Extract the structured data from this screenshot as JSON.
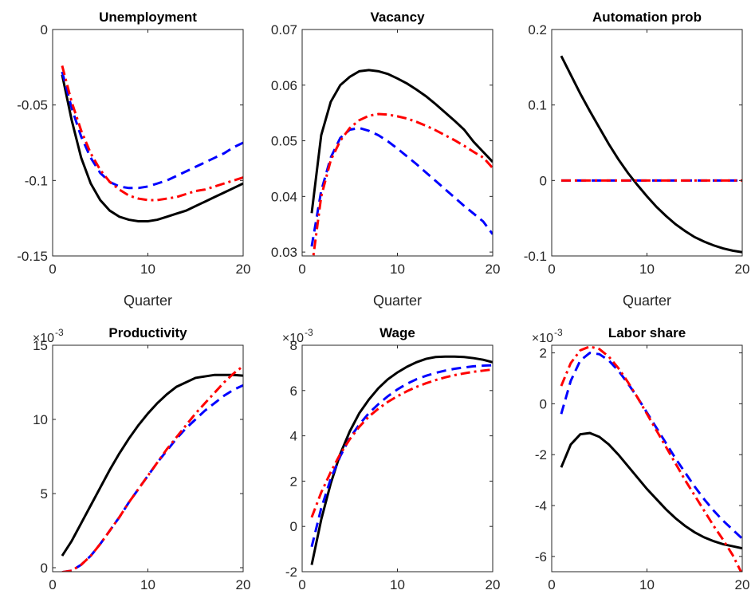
{
  "chart_data": [
    {
      "type": "line",
      "title": "Unemployment",
      "x_label": "Quarter",
      "x": [
        1,
        2,
        3,
        4,
        5,
        6,
        7,
        8,
        9,
        10,
        11,
        12,
        13,
        14,
        15,
        16,
        17,
        18,
        19,
        20
      ],
      "xlim": [
        0,
        20
      ],
      "xticks": [
        0,
        10,
        20
      ],
      "ylim": [
        -0.15,
        0
      ],
      "yticks": [
        -0.15,
        -0.1,
        -0.05,
        0
      ],
      "series": [
        {
          "color": "#000000",
          "line_style": "solid",
          "values": [
            -0.03,
            -0.06,
            -0.085,
            -0.102,
            -0.113,
            -0.12,
            -0.124,
            -0.126,
            -0.127,
            -0.127,
            -0.126,
            -0.124,
            -0.122,
            -0.12,
            -0.117,
            -0.114,
            -0.111,
            -0.108,
            -0.105,
            -0.102
          ]
        },
        {
          "color": "#0000ff",
          "line_style": "dashed",
          "values": [
            -0.028,
            -0.052,
            -0.071,
            -0.085,
            -0.095,
            -0.101,
            -0.104,
            -0.105,
            -0.105,
            -0.104,
            -0.102,
            -0.1,
            -0.097,
            -0.094,
            -0.091,
            -0.088,
            -0.085,
            -0.082,
            -0.078,
            -0.075
          ]
        },
        {
          "color": "#ff0000",
          "line_style": "dashdot",
          "values": [
            -0.024,
            -0.048,
            -0.067,
            -0.082,
            -0.093,
            -0.101,
            -0.106,
            -0.11,
            -0.112,
            -0.113,
            -0.113,
            -0.112,
            -0.111,
            -0.109,
            -0.107,
            -0.106,
            -0.104,
            -0.102,
            -0.1,
            -0.098
          ]
        }
      ]
    },
    {
      "type": "line",
      "title": "Vacancy",
      "x_label": "Quarter",
      "x": [
        1,
        2,
        3,
        4,
        5,
        6,
        7,
        8,
        9,
        10,
        11,
        12,
        13,
        14,
        15,
        16,
        17,
        18,
        19,
        20
      ],
      "xlim": [
        0,
        20
      ],
      "xticks": [
        0,
        10,
        20
      ],
      "ylim": [
        0.0293,
        0.07
      ],
      "yticks": [
        0.03,
        0.04,
        0.05,
        0.06,
        0.07
      ],
      "series": [
        {
          "color": "#000000",
          "line_style": "solid",
          "values": [
            0.037,
            0.051,
            0.057,
            0.06,
            0.0615,
            0.0625,
            0.0627,
            0.0625,
            0.062,
            0.0612,
            0.0603,
            0.0592,
            0.058,
            0.0566,
            0.0551,
            0.0536,
            0.052,
            0.0498,
            0.048,
            0.0462
          ]
        },
        {
          "color": "#0000ff",
          "line_style": "dashed",
          "values": [
            0.031,
            0.041,
            0.047,
            0.0505,
            0.052,
            0.0523,
            0.0518,
            0.051,
            0.0499,
            0.0486,
            0.0472,
            0.0458,
            0.0443,
            0.0428,
            0.0413,
            0.0398,
            0.0383,
            0.0369,
            0.0355,
            0.0332
          ]
        },
        {
          "color": "#ff0000",
          "line_style": "dashdot",
          "values": [
            0.027,
            0.04,
            0.0465,
            0.05,
            0.0523,
            0.0537,
            0.0545,
            0.0548,
            0.0547,
            0.0544,
            0.054,
            0.0534,
            0.0527,
            0.0519,
            0.051,
            0.0501,
            0.0491,
            0.048,
            0.047,
            0.0451
          ]
        }
      ]
    },
    {
      "type": "line",
      "title": "Automation prob",
      "x_label": "Quarter",
      "x": [
        1,
        2,
        3,
        4,
        5,
        6,
        7,
        8,
        9,
        10,
        11,
        12,
        13,
        14,
        15,
        16,
        17,
        18,
        19,
        20
      ],
      "xlim": [
        0,
        20
      ],
      "xticks": [
        0,
        10,
        20
      ],
      "ylim": [
        -0.1,
        0.2
      ],
      "yticks": [
        -0.1,
        0,
        0.1,
        0.2
      ],
      "series": [
        {
          "color": "#000000",
          "line_style": "solid",
          "values": [
            0.165,
            0.14,
            0.115,
            0.092,
            0.07,
            0.048,
            0.028,
            0.01,
            -0.006,
            -0.021,
            -0.035,
            -0.047,
            -0.058,
            -0.067,
            -0.075,
            -0.081,
            -0.086,
            -0.09,
            -0.093,
            -0.095
          ]
        },
        {
          "color": "#0000ff",
          "line_style": "dashed",
          "values": [
            0,
            0,
            0,
            0,
            0,
            0,
            0,
            0,
            0,
            0,
            0,
            0,
            0,
            0,
            0,
            0,
            0,
            0,
            0,
            0
          ]
        },
        {
          "color": "#ff0000",
          "line_style": "dashdot",
          "values": [
            0,
            0,
            0,
            0,
            0,
            0,
            0,
            0,
            0,
            0,
            0,
            0,
            0,
            0,
            0,
            0,
            0,
            0,
            0,
            0
          ]
        }
      ]
    },
    {
      "type": "line",
      "title": "Productivity",
      "y_multiplier": "×10",
      "y_exponent": "-3",
      "x": [
        1,
        2,
        3,
        4,
        5,
        6,
        7,
        8,
        9,
        10,
        11,
        12,
        13,
        14,
        15,
        16,
        17,
        18,
        19,
        20
      ],
      "xlim": [
        0,
        20
      ],
      "xticks": [
        0,
        10,
        20
      ],
      "ylim": [
        -0.27,
        15
      ],
      "yticks": [
        0,
        5,
        10,
        15
      ],
      "series": [
        {
          "color": "#000000",
          "line_style": "solid",
          "values": [
            0.8,
            1.8,
            3.0,
            4.2,
            5.4,
            6.6,
            7.7,
            8.7,
            9.6,
            10.4,
            11.1,
            11.7,
            12.2,
            12.5,
            12.8,
            12.9,
            13.0,
            13.0,
            13.0,
            12.95
          ]
        },
        {
          "color": "#0000ff",
          "line_style": "dashed",
          "values": [
            -0.3,
            -0.2,
            0.2,
            0.8,
            1.6,
            2.5,
            3.4,
            4.4,
            5.3,
            6.2,
            7.1,
            7.9,
            8.7,
            9.4,
            10.0,
            10.6,
            11.1,
            11.6,
            12.0,
            12.3
          ]
        },
        {
          "color": "#ff0000",
          "line_style": "dashdot",
          "values": [
            -0.3,
            -0.2,
            0.2,
            0.8,
            1.6,
            2.5,
            3.4,
            4.4,
            5.3,
            6.2,
            7.1,
            8.0,
            8.8,
            9.6,
            10.4,
            11.1,
            11.8,
            12.5,
            13.1,
            13.6
          ]
        }
      ]
    },
    {
      "type": "line",
      "title": "Wage",
      "y_multiplier": "×10",
      "y_exponent": "-3",
      "x": [
        1,
        2,
        3,
        4,
        5,
        6,
        7,
        8,
        9,
        10,
        11,
        12,
        13,
        14,
        15,
        16,
        17,
        18,
        19,
        20
      ],
      "xlim": [
        0,
        20
      ],
      "xticks": [
        0,
        10,
        20
      ],
      "ylim": [
        -2,
        8
      ],
      "yticks": [
        -2,
        0,
        2,
        4,
        6,
        8
      ],
      "series": [
        {
          "color": "#000000",
          "line_style": "solid",
          "values": [
            -1.7,
            0.3,
            1.9,
            3.2,
            4.2,
            5.0,
            5.6,
            6.1,
            6.5,
            6.8,
            7.05,
            7.25,
            7.4,
            7.48,
            7.5,
            7.5,
            7.48,
            7.43,
            7.36,
            7.25
          ]
        },
        {
          "color": "#0000ff",
          "line_style": "dashed",
          "values": [
            -0.9,
            0.8,
            2.1,
            3.1,
            3.9,
            4.5,
            5.0,
            5.4,
            5.75,
            6.05,
            6.3,
            6.5,
            6.65,
            6.78,
            6.88,
            6.96,
            7.02,
            7.07,
            7.1,
            7.12
          ]
        },
        {
          "color": "#ff0000",
          "line_style": "dashdot",
          "values": [
            0.4,
            1.5,
            2.4,
            3.2,
            3.85,
            4.4,
            4.85,
            5.2,
            5.5,
            5.75,
            5.97,
            6.16,
            6.32,
            6.46,
            6.58,
            6.68,
            6.76,
            6.83,
            6.88,
            6.93
          ]
        }
      ]
    },
    {
      "type": "line",
      "title": "Labor share",
      "y_multiplier": "×10",
      "y_exponent": "-3",
      "x": [
        1,
        2,
        3,
        4,
        5,
        6,
        7,
        8,
        9,
        10,
        11,
        12,
        13,
        14,
        15,
        16,
        17,
        18,
        19,
        20
      ],
      "xlim": [
        0,
        20
      ],
      "xticks": [
        0,
        10,
        20
      ],
      "ylim": [
        -6.6,
        2.3
      ],
      "yticks": [
        -6,
        -4,
        -2,
        0,
        2
      ],
      "series": [
        {
          "color": "#000000",
          "line_style": "solid",
          "values": [
            -2.5,
            -1.6,
            -1.2,
            -1.15,
            -1.3,
            -1.6,
            -2.0,
            -2.45,
            -2.9,
            -3.35,
            -3.75,
            -4.15,
            -4.5,
            -4.8,
            -5.05,
            -5.25,
            -5.4,
            -5.52,
            -5.6,
            -5.68
          ]
        },
        {
          "color": "#0000ff",
          "line_style": "dashed",
          "values": [
            -0.4,
            0.9,
            1.7,
            2.0,
            1.95,
            1.7,
            1.3,
            0.8,
            0.25,
            -0.35,
            -0.95,
            -1.55,
            -2.15,
            -2.7,
            -3.25,
            -3.75,
            -4.2,
            -4.6,
            -4.95,
            -5.3
          ]
        },
        {
          "color": "#ff0000",
          "line_style": "dashdot",
          "values": [
            0.7,
            1.6,
            2.1,
            2.25,
            2.15,
            1.85,
            1.4,
            0.85,
            0.25,
            -0.4,
            -1.05,
            -1.7,
            -2.35,
            -3.0,
            -3.6,
            -4.2,
            -4.8,
            -5.35,
            -5.95,
            -6.7
          ]
        }
      ]
    }
  ]
}
